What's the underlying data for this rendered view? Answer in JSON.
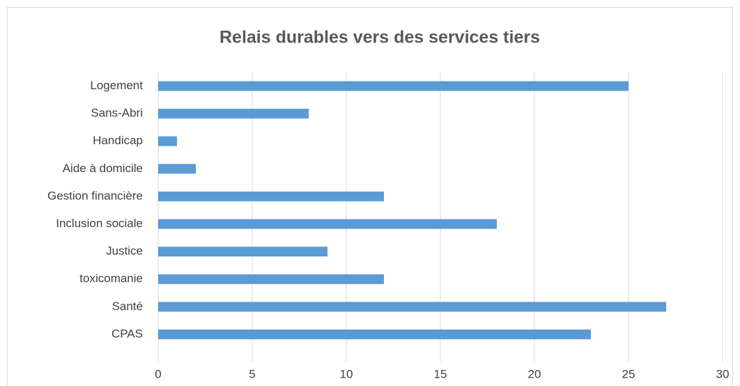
{
  "chart_data": {
    "type": "bar",
    "orientation": "horizontal",
    "title": "Relais durables vers des services tiers",
    "categories": [
      "Logement",
      "Sans-Abri",
      "Handicap",
      "Aide à domicile",
      "Gestion financière",
      "Inclusion sociale",
      "Justice",
      "toxicomanie",
      "Santé",
      "CPAS"
    ],
    "values": [
      25,
      8,
      1,
      2,
      12,
      18,
      9,
      12,
      27,
      23
    ],
    "color": "#5b9bd5",
    "xlim": [
      0,
      30
    ],
    "xticks": [
      0,
      5,
      10,
      15,
      20,
      25,
      30
    ],
    "grid": true
  }
}
